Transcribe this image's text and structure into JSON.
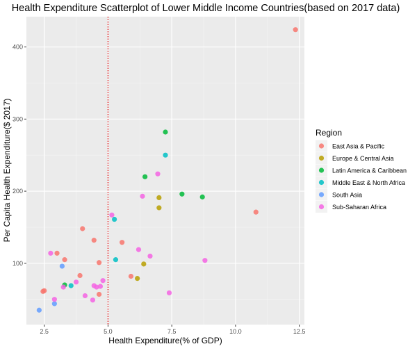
{
  "chart_data": {
    "type": "scatter",
    "title": "Health Expenditure Scatterplot of Lower Middle Income Countries(based on 2017 data)",
    "xlabel": "Health Expenditure(% of GDP)",
    "ylabel": "Per Capita Health Expenditure($ 2017)",
    "xlim": [
      1.8,
      12.7
    ],
    "ylim": [
      15,
      442
    ],
    "x_ticks": [
      2.5,
      5.0,
      7.5,
      10.0,
      12.5
    ],
    "x_tick_labels": [
      "2.5",
      "5.0",
      "7.5",
      "10.0",
      "12.5"
    ],
    "y_ticks": [
      100,
      200,
      300,
      400
    ],
    "y_tick_labels": [
      "100",
      "200",
      "300",
      "400"
    ],
    "vline": {
      "x": 5.0,
      "color": "#e41a1c",
      "style": "dotted"
    },
    "grid": true,
    "legend": {
      "title": "Region",
      "position": "right"
    },
    "series": [
      {
        "name": "East Asia & Pacific",
        "color": "#F8766D",
        "x": [
          2.45,
          2.5,
          3.0,
          3.3,
          3.9,
          4.0,
          4.45,
          4.65,
          4.65,
          5.55,
          5.9,
          10.8,
          12.35
        ],
        "y": [
          61,
          62,
          114,
          105,
          83,
          148,
          132,
          57,
          101,
          129,
          82,
          171,
          424
        ]
      },
      {
        "name": "Europe & Central Asia",
        "color": "#B79F00",
        "x": [
          6.15,
          6.4,
          7.0,
          7.0
        ],
        "y": [
          79,
          99,
          177,
          191
        ]
      },
      {
        "name": "Latin America & Caribbean",
        "color": "#00BA38",
        "x": [
          3.3,
          6.45,
          7.25,
          7.9,
          8.7
        ],
        "y": [
          70,
          220,
          282,
          196,
          192
        ]
      },
      {
        "name": "Middle East & North Africa",
        "color": "#00BFC4",
        "x": [
          3.55,
          5.25,
          5.3,
          7.25
        ],
        "y": [
          69,
          161,
          105,
          250
        ]
      },
      {
        "name": "South Asia",
        "color": "#619CFF",
        "x": [
          2.3,
          2.9,
          3.2
        ],
        "y": [
          35,
          44,
          96
        ]
      },
      {
        "name": "Sub-Saharan Africa",
        "color": "#F564E3",
        "x": [
          2.75,
          2.9,
          3.25,
          3.75,
          4.1,
          4.4,
          4.45,
          4.55,
          4.7,
          4.8,
          5.15,
          6.2,
          6.35,
          6.65,
          6.95,
          7.4,
          8.8
        ],
        "y": [
          114,
          50,
          67,
          74,
          55,
          49,
          69,
          67,
          68,
          76,
          167,
          119,
          193,
          110,
          224,
          59,
          104
        ]
      }
    ]
  }
}
